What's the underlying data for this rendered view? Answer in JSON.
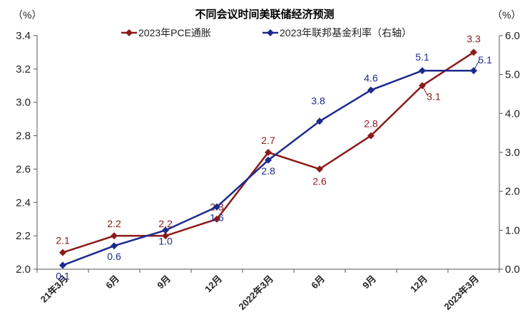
{
  "chart_data": {
    "type": "line",
    "title": "不同会议时间美联储经济预测",
    "left_unit": "（%）",
    "right_unit": "（%）",
    "categories": [
      "21年3月",
      "6月",
      "9月",
      "12月",
      "2022年3月",
      "6月",
      "9月",
      "12月",
      "2023年3月"
    ],
    "left_axis": {
      "min": 2.0,
      "max": 3.4,
      "ticks": [
        "2.0",
        "2.2",
        "2.4",
        "2.6",
        "2.8",
        "3.0",
        "3.2",
        "3.4"
      ]
    },
    "right_axis": {
      "min": 0.0,
      "max": 6.0,
      "ticks": [
        "0.0",
        "1.0",
        "2.0",
        "3.0",
        "4.0",
        "5.0",
        "6.0"
      ]
    },
    "legend_position": "top",
    "grid": false,
    "series": [
      {
        "name": "2023年PCE通胀",
        "axis": "left",
        "color": "#8b1a1a",
        "marker": "diamond",
        "values": [
          2.1,
          2.2,
          2.2,
          2.3,
          2.7,
          2.6,
          2.8,
          3.1,
          3.3
        ],
        "labels": [
          "2.1",
          "2.2",
          "2.2",
          "2.3",
          "2.7",
          "2.6",
          "2.8",
          "3.1",
          "3.3"
        ]
      },
      {
        "name": "2023年联邦基金利率（右轴）",
        "axis": "right",
        "color": "#1c2a8c",
        "marker": "diamond",
        "values": [
          0.1,
          0.6,
          1.0,
          1.6,
          2.8,
          3.8,
          4.6,
          5.1,
          5.1
        ],
        "labels": [
          "0.1",
          "0.6",
          "1.0",
          "1.6",
          "2.8",
          "3.8",
          "4.6",
          "5.1",
          "5.1"
        ]
      }
    ]
  }
}
